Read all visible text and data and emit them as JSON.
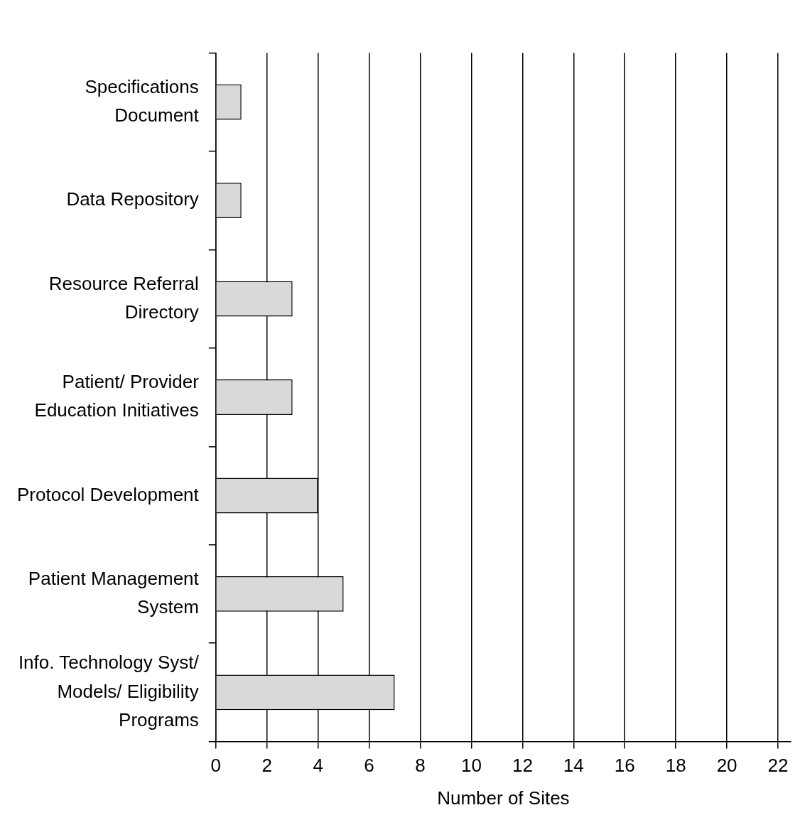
{
  "chart_data": {
    "type": "bar",
    "orientation": "horizontal",
    "xlabel": "Number of Sites",
    "categories": [
      "Specifications Document",
      "Data Repository",
      "Resource Referral Directory",
      "Patient/ Provider Education Initiatives",
      "Protocol Development",
      "Patient Management System",
      "Info. Technology Syst/ Models/ Eligibility Programs"
    ],
    "values": [
      1,
      1,
      3,
      3,
      4,
      5,
      7
    ],
    "color": "#d9d9d9",
    "xlim": [
      0,
      22.5
    ],
    "xticks": [
      0,
      2,
      4,
      6,
      8,
      10,
      12,
      14,
      16,
      18,
      20,
      22
    ],
    "grid": "x",
    "legend": false
  }
}
